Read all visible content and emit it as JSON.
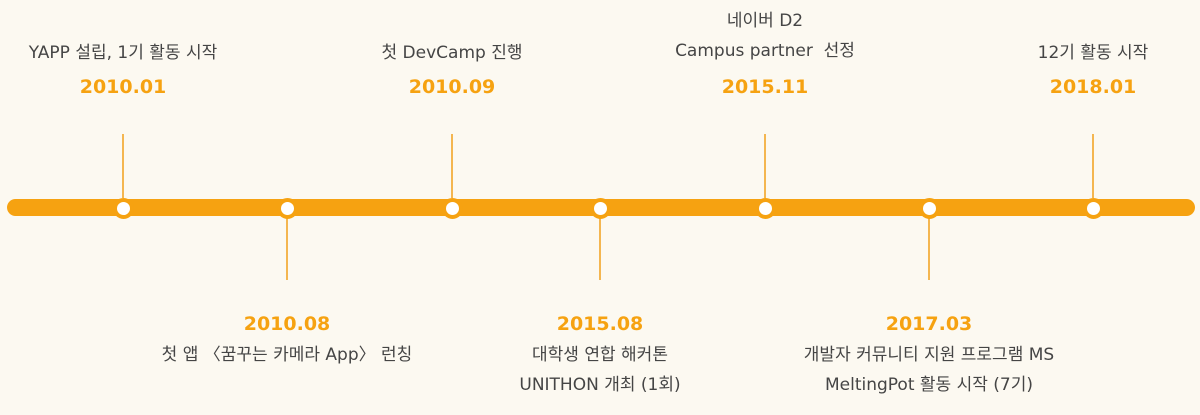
{
  "colors": {
    "background": "#fcf9f1",
    "accent": "#f6a211",
    "stem": "#f4b650",
    "node_fill": "#ffffff",
    "text": "#454545"
  },
  "milestones": [
    {
      "date": "2010.01",
      "lines": [
        "YAPP 설립, 1기 활동 시작"
      ],
      "side": "top"
    },
    {
      "date": "2010.08",
      "lines": [
        "첫 앱 〈꿈꾸는 카메라 App〉 런칭"
      ],
      "side": "bottom"
    },
    {
      "date": "2010.09",
      "lines": [
        "첫 DevCamp 진행"
      ],
      "side": "top"
    },
    {
      "date": "2015.08",
      "lines": [
        "대학생 연합 해커톤",
        "UNITHON 개최 (1회)"
      ],
      "side": "bottom"
    },
    {
      "date": "2015.11",
      "lines": [
        "네이버 D2",
        "Campus partner  선정"
      ],
      "side": "top"
    },
    {
      "date": "2017.03",
      "lines": [
        "개발자 커뮤니티 지원 프로그램 MS",
        "MeltingPot 활동 시작 (7기)"
      ],
      "side": "bottom"
    },
    {
      "date": "2018.01",
      "lines": [
        "12기 활동 시작"
      ],
      "side": "top"
    }
  ]
}
